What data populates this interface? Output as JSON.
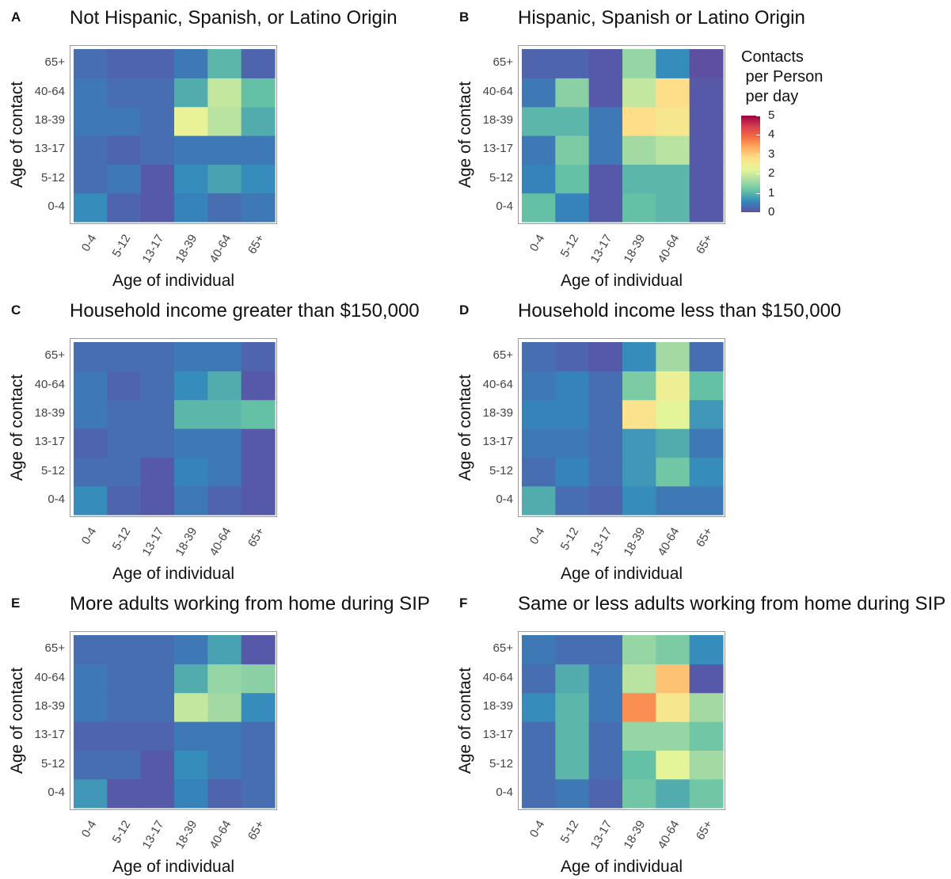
{
  "chart_data": [
    {
      "panel": "A",
      "title": "Not Hispanic, Spanish, or Latino Origin",
      "type": "heatmap",
      "xlabel": "Age of individual",
      "ylabel": "Age of contact",
      "x_categories": [
        "0-4",
        "5-12",
        "13-17",
        "18-39",
        "40-64",
        "65+"
      ],
      "y_categories": [
        "0-4",
        "5-12",
        "13-17",
        "18-39",
        "40-64",
        "65+"
      ],
      "values": [
        [
          0.6,
          0.2,
          0.1,
          0.5,
          0.3,
          0.4
        ],
        [
          0.3,
          0.4,
          0.1,
          0.6,
          0.8,
          0.6
        ],
        [
          0.3,
          0.2,
          0.3,
          0.4,
          0.4,
          0.4
        ],
        [
          0.4,
          0.4,
          0.3,
          2.3,
          1.8,
          0.9
        ],
        [
          0.4,
          0.3,
          0.3,
          0.9,
          1.9,
          1.1
        ],
        [
          0.3,
          0.2,
          0.2,
          0.4,
          1.0,
          0.2
        ]
      ]
    },
    {
      "panel": "B",
      "title": "Hispanic, Spanish or Latino Origin",
      "type": "heatmap",
      "xlabel": "Age of individual",
      "ylabel": "Age of contact",
      "x_categories": [
        "0-4",
        "5-12",
        "13-17",
        "18-39",
        "40-64",
        "65+"
      ],
      "y_categories": [
        "0-4",
        "5-12",
        "13-17",
        "18-39",
        "40-64",
        "65+"
      ],
      "values": [
        [
          1.1,
          0.5,
          0.1,
          1.1,
          1.0,
          0.1
        ],
        [
          0.5,
          1.1,
          0.1,
          1.0,
          1.0,
          0.1
        ],
        [
          0.4,
          1.3,
          0.4,
          1.6,
          1.8,
          0.1
        ],
        [
          1.0,
          1.0,
          0.4,
          2.8,
          2.6,
          0.1
        ],
        [
          0.4,
          1.4,
          0.1,
          1.9,
          2.8,
          0.1
        ],
        [
          0.2,
          0.2,
          0.1,
          1.5,
          0.6,
          0.0
        ]
      ]
    },
    {
      "panel": "C",
      "title": "Household income greater than $150,000",
      "type": "heatmap",
      "xlabel": "Age of individual",
      "ylabel": "Age of contact",
      "x_categories": [
        "0-4",
        "5-12",
        "13-17",
        "18-39",
        "40-64",
        "65+"
      ],
      "y_categories": [
        "0-4",
        "5-12",
        "13-17",
        "18-39",
        "40-64",
        "65+"
      ],
      "values": [
        [
          0.6,
          0.2,
          0.1,
          0.4,
          0.2,
          0.1
        ],
        [
          0.3,
          0.3,
          0.1,
          0.5,
          0.4,
          0.1
        ],
        [
          0.2,
          0.3,
          0.3,
          0.4,
          0.4,
          0.1
        ],
        [
          0.4,
          0.3,
          0.3,
          1.0,
          1.0,
          1.1
        ],
        [
          0.4,
          0.2,
          0.3,
          0.6,
          0.9,
          0.1
        ],
        [
          0.3,
          0.3,
          0.3,
          0.4,
          0.4,
          0.2
        ]
      ]
    },
    {
      "panel": "D",
      "title": "Household income less than $150,000",
      "type": "heatmap",
      "xlabel": "Age of individual",
      "ylabel": "Age of contact",
      "x_categories": [
        "0-4",
        "5-12",
        "13-17",
        "18-39",
        "40-64",
        "65+"
      ],
      "y_categories": [
        "0-4",
        "5-12",
        "13-17",
        "18-39",
        "40-64",
        "65+"
      ],
      "values": [
        [
          0.9,
          0.3,
          0.2,
          0.6,
          0.4,
          0.4
        ],
        [
          0.3,
          0.5,
          0.3,
          0.7,
          1.2,
          0.6
        ],
        [
          0.4,
          0.4,
          0.3,
          0.7,
          0.9,
          0.4
        ],
        [
          0.5,
          0.5,
          0.3,
          2.7,
          2.2,
          0.7
        ],
        [
          0.4,
          0.5,
          0.3,
          1.3,
          2.4,
          1.1
        ],
        [
          0.3,
          0.2,
          0.1,
          0.6,
          1.6,
          0.3
        ]
      ]
    },
    {
      "panel": "E",
      "title": "More adults working from home during SIP",
      "type": "heatmap",
      "xlabel": "Age of individual",
      "ylabel": "Age of contact",
      "x_categories": [
        "0-4",
        "5-12",
        "13-17",
        "18-39",
        "40-64",
        "65+"
      ],
      "y_categories": [
        "0-4",
        "5-12",
        "13-17",
        "18-39",
        "40-64",
        "65+"
      ],
      "values": [
        [
          0.7,
          0.1,
          0.1,
          0.5,
          0.2,
          0.3
        ],
        [
          0.3,
          0.3,
          0.1,
          0.6,
          0.4,
          0.3
        ],
        [
          0.2,
          0.2,
          0.2,
          0.4,
          0.4,
          0.3
        ],
        [
          0.4,
          0.3,
          0.3,
          1.9,
          1.6,
          0.6
        ],
        [
          0.4,
          0.3,
          0.3,
          0.9,
          1.5,
          1.4
        ],
        [
          0.3,
          0.3,
          0.3,
          0.4,
          0.8,
          0.1
        ]
      ]
    },
    {
      "panel": "F",
      "title": "Same or less adults working from home during SIP",
      "type": "heatmap",
      "xlabel": "Age of individual",
      "ylabel": "Age of contact",
      "x_categories": [
        "0-4",
        "5-12",
        "13-17",
        "18-39",
        "40-64",
        "65+"
      ],
      "y_categories": [
        "0-4",
        "5-12",
        "13-17",
        "18-39",
        "40-64",
        "65+"
      ],
      "values": [
        [
          0.3,
          0.4,
          0.2,
          1.2,
          0.9,
          1.2
        ],
        [
          0.3,
          1.0,
          0.3,
          1.1,
          2.2,
          1.6
        ],
        [
          0.3,
          1.0,
          0.3,
          1.5,
          1.5,
          1.2
        ],
        [
          0.6,
          1.0,
          0.4,
          3.6,
          2.6,
          1.6
        ],
        [
          0.3,
          0.9,
          0.4,
          1.8,
          3.1,
          0.1
        ],
        [
          0.4,
          0.3,
          0.3,
          1.5,
          1.3,
          0.6
        ]
      ]
    }
  ],
  "legend": {
    "title": "Contacts\n per Person\n per day",
    "ticks": [
      "5",
      "4",
      "3",
      "2",
      "1",
      "0"
    ],
    "min": 0,
    "max": 5,
    "palette": [
      "#5E4FA2",
      "#3288BD",
      "#66C2A5",
      "#ABDDA4",
      "#E6F598",
      "#FEE08B",
      "#FDAE61",
      "#F46D43",
      "#D53E4F",
      "#9E0142"
    ]
  }
}
